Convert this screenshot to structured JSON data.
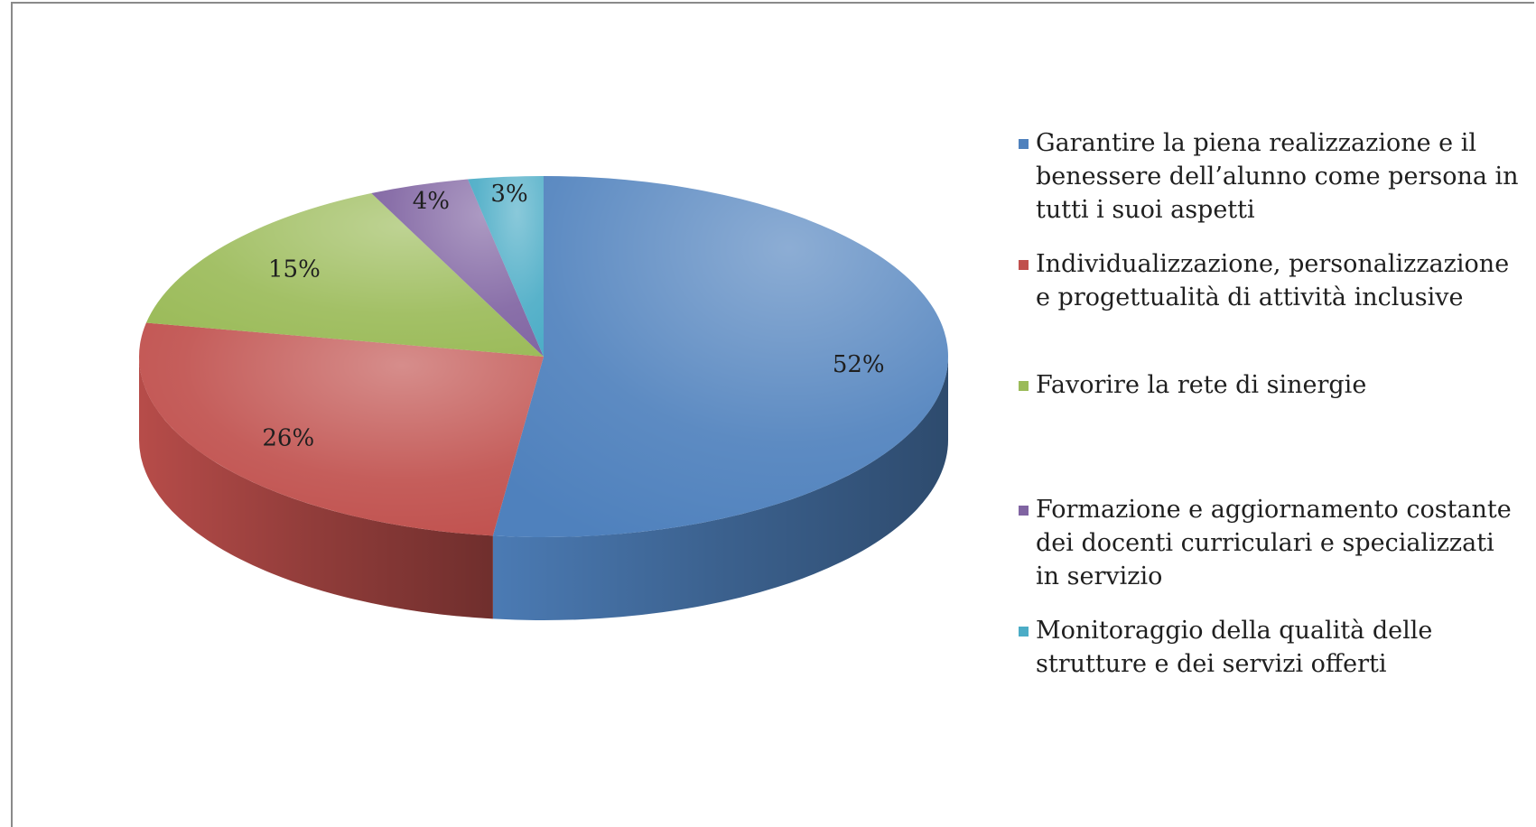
{
  "chart_data": {
    "type": "pie",
    "style": "3d",
    "legend_position": "right",
    "slices": [
      {
        "label": "Garantire la piena realizzazione e il benessere dell’alunno come persona in tutti i suoi aspetti",
        "value": 52,
        "data_label": "52%",
        "color": "#4f81bd"
      },
      {
        "label": "Individualizzazione, personalizzazione e progettualità di attività inclusive",
        "value": 26,
        "data_label": "26%",
        "color": "#c0504d"
      },
      {
        "label": "Favorire la rete di sinergie",
        "value": 15,
        "data_label": "15%",
        "color": "#9bbb59"
      },
      {
        "label": "Formazione e aggiornamento costante dei docenti curriculari e specializzati in servizio",
        "value": 4,
        "data_label": "4%",
        "color": "#8064a2"
      },
      {
        "label": "Monitoraggio della qualità delle strutture e dei servizi offerti",
        "value": 3,
        "data_label": "3%",
        "color": "#4bacc6"
      }
    ]
  }
}
